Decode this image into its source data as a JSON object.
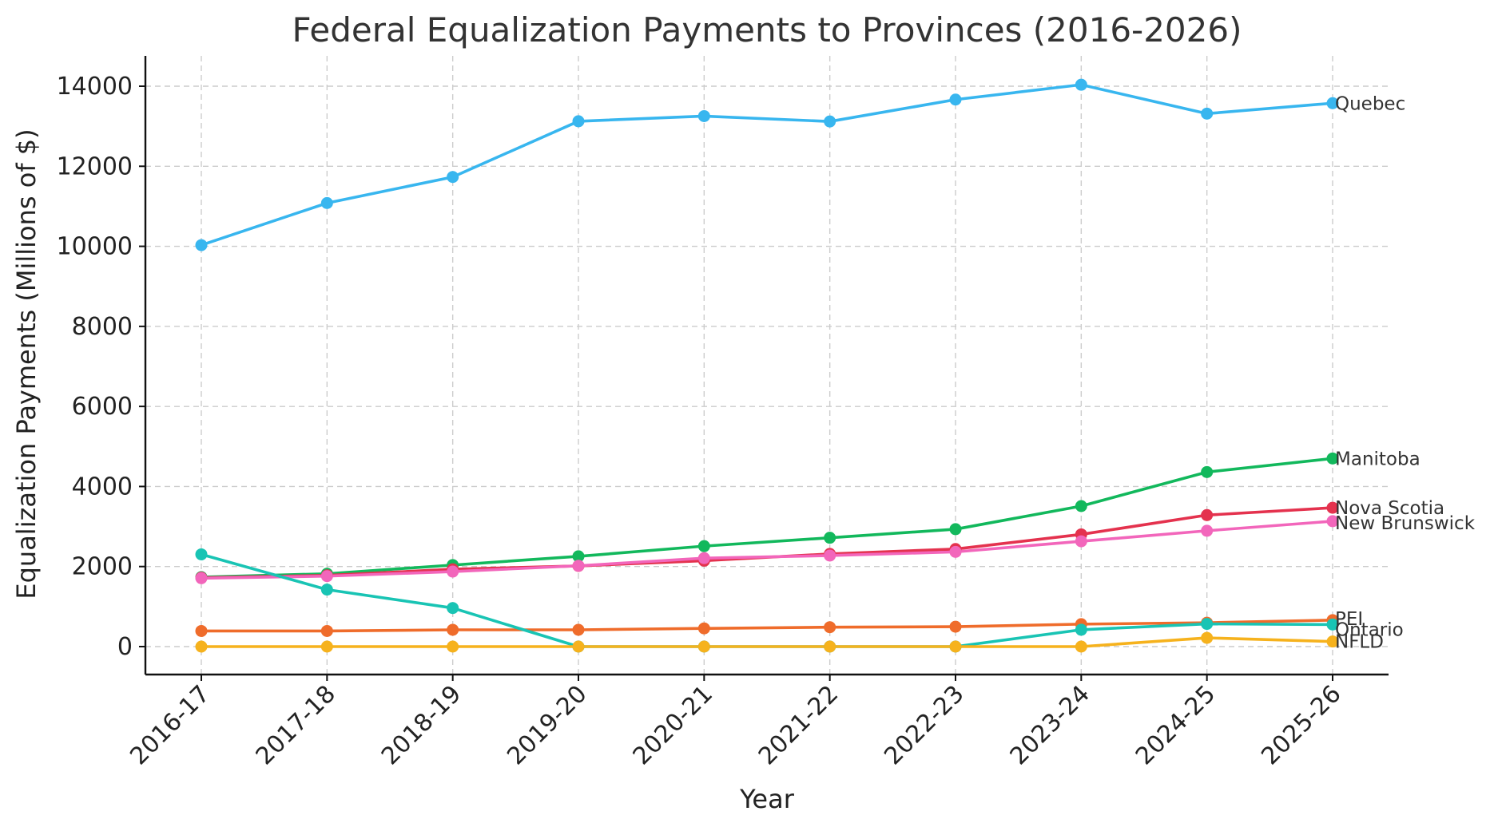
{
  "chart_data": {
    "type": "line",
    "title": "Federal Equalization Payments to Provinces (2016-2026)",
    "xlabel": "Year",
    "ylabel": "Equalization Payments (Millions of $)",
    "ylim": [
      -700,
      14800
    ],
    "yticks": [
      0,
      2000,
      4000,
      6000,
      8000,
      10000,
      12000,
      14000
    ],
    "grid": true,
    "legend": "labels at right end of each line",
    "categories": [
      "2016-17",
      "2017-18",
      "2018-19",
      "2019-20",
      "2020-21",
      "2021-22",
      "2022-23",
      "2023-24",
      "2024-25",
      "2025-26"
    ],
    "series": [
      {
        "name": "Quebec",
        "color": "#38b6ef",
        "values": [
          10030,
          11081,
          11732,
          13124,
          13253,
          13119,
          13666,
          14037,
          13315,
          13576
        ]
      },
      {
        "name": "Manitoba",
        "color": "#12b85c",
        "values": [
          1736,
          1820,
          2037,
          2255,
          2510,
          2719,
          2933,
          3510,
          4361,
          4700
        ]
      },
      {
        "name": "Nova Scotia",
        "color": "#e4324e",
        "values": [
          1722,
          1779,
          1933,
          2015,
          2146,
          2315,
          2437,
          2803,
          3285,
          3468
        ]
      },
      {
        "name": "New Brunswick",
        "color": "#f266bb",
        "values": [
          1709,
          1760,
          1874,
          2019,
          2210,
          2274,
          2366,
          2631,
          2894,
          3133
        ]
      },
      {
        "name": "PEI",
        "color": "#ef6c2b",
        "values": [
          390,
          390,
          419,
          419,
          454,
          484,
          497,
          561,
          596,
          661
        ]
      },
      {
        "name": "Ontario",
        "color": "#19c4b4",
        "values": [
          2304,
          1424,
          963,
          0,
          0,
          0,
          0,
          421,
          567,
          551
        ]
      },
      {
        "name": "NFLD",
        "color": "#f6b21d",
        "values": [
          0,
          0,
          0,
          0,
          0,
          0,
          0,
          0,
          218,
          126
        ]
      }
    ]
  }
}
